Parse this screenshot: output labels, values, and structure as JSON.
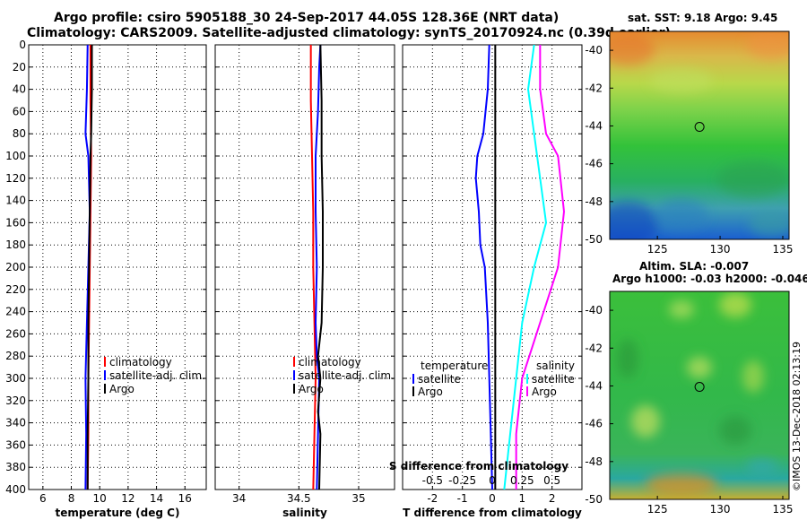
{
  "header": {
    "title_line1": "Argo profile: csiro 5905188_30 24-Sep-2017 44.05S 128.36E (NRT data)",
    "title_line2": "Climatology: CARS2009. Satellite-adjusted climatology: synTS_20170924.nc (0.39d earlier)"
  },
  "watermark": "©IMOS 13-Dec-2018 02:13:19",
  "colors": {
    "climatology": "#ff0000",
    "satellite_clim": "#0000ff",
    "argo": "#000000",
    "temp_satellite": "#0000ff",
    "temp_argo": "#000000",
    "sal_satellite": "#00ffff",
    "sal_argo": "#ff00ff"
  },
  "sst_map": {
    "title": "sat. SST: 9.18 Argo: 9.45",
    "xticks": [
      "125",
      "130",
      "135"
    ],
    "yticks": [
      "-40",
      "-42",
      "-44",
      "-46",
      "-48",
      "-50"
    ],
    "float_marker": {
      "lon": 128.36,
      "lat": -44.05
    }
  },
  "sla_map": {
    "title_line1": "Altim. SLA: -0.007",
    "title_line2": "Argo h1000: -0.03 h2000: -0.046",
    "xticks": [
      "125",
      "130",
      "135"
    ],
    "yticks": [
      "-40",
      "-42",
      "-44",
      "-46",
      "-48",
      "-50"
    ],
    "float_marker": {
      "lon": 128.36,
      "lat": -44.05
    }
  },
  "chart_data": [
    {
      "type": "line",
      "id": "temperature-profile",
      "xlabel": "temperature (deg C)",
      "ylabel": "depth (m)",
      "xlim": [
        5,
        17.5
      ],
      "ylim": [
        400,
        0
      ],
      "xticks": [
        6,
        8,
        10,
        12,
        14,
        16
      ],
      "yticks": [
        0,
        20,
        40,
        60,
        80,
        100,
        120,
        140,
        160,
        180,
        200,
        220,
        240,
        260,
        280,
        300,
        320,
        340,
        360,
        380,
        400
      ],
      "grid": true,
      "legend": [
        "climatology",
        "satellite-adj. clim.",
        "Argo"
      ],
      "series": [
        {
          "name": "climatology",
          "depth": [
            0,
            50,
            100,
            150,
            200,
            250,
            300,
            350,
            400
          ],
          "values": [
            9.35,
            9.35,
            9.4,
            9.35,
            9.3,
            9.25,
            9.2,
            9.2,
            9.15
          ]
        },
        {
          "name": "satellite-adj. clim.",
          "depth": [
            0,
            40,
            80,
            100,
            150,
            200,
            250,
            300,
            350,
            400
          ],
          "values": [
            9.15,
            9.1,
            9.0,
            9.2,
            9.3,
            9.2,
            9.1,
            9.0,
            9.05,
            9.0
          ]
        },
        {
          "name": "Argo",
          "depth": [
            0,
            40,
            80,
            100,
            150,
            200,
            250,
            300,
            350,
            400
          ],
          "values": [
            9.45,
            9.45,
            9.4,
            9.35,
            9.3,
            9.25,
            9.2,
            9.2,
            9.15,
            9.15
          ]
        }
      ]
    },
    {
      "type": "line",
      "id": "salinity-profile",
      "xlabel": "salinity",
      "ylabel": "depth (m)",
      "xlim": [
        33.8,
        35.3
      ],
      "ylim": [
        400,
        0
      ],
      "xticks": [
        34,
        34.5,
        35
      ],
      "yticks": [
        0,
        20,
        40,
        60,
        80,
        100,
        120,
        140,
        160,
        180,
        200,
        220,
        240,
        260,
        280,
        300,
        320,
        340,
        360,
        380,
        400
      ],
      "grid": true,
      "legend": [
        "climatology",
        "satellite-adj. clim.",
        "Argo"
      ],
      "series": [
        {
          "name": "climatology",
          "depth": [
            0,
            50,
            100,
            150,
            200,
            250,
            300,
            350,
            400
          ],
          "values": [
            34.6,
            34.6,
            34.61,
            34.62,
            34.62,
            34.63,
            34.64,
            34.63,
            34.62
          ]
        },
        {
          "name": "satellite-adj. clim.",
          "depth": [
            0,
            20,
            60,
            100,
            150,
            200,
            250,
            280,
            300,
            350,
            400
          ],
          "values": [
            34.68,
            34.67,
            34.66,
            34.64,
            34.64,
            34.65,
            34.64,
            34.65,
            34.67,
            34.66,
            34.65
          ]
        },
        {
          "name": "Argo",
          "depth": [
            0,
            50,
            100,
            150,
            200,
            250,
            280,
            300,
            330,
            350,
            400
          ],
          "values": [
            34.68,
            34.69,
            34.69,
            34.7,
            34.7,
            34.69,
            34.66,
            34.68,
            34.66,
            34.68,
            34.67
          ]
        }
      ]
    },
    {
      "type": "line",
      "id": "difference-profile",
      "xlabel": "T difference from climatology",
      "xlabel2": "S difference from climatology",
      "xlim": [
        -3,
        3
      ],
      "ylim": [
        400,
        0
      ],
      "xticks": [
        -2,
        -1,
        0,
        1,
        2
      ],
      "xticks2": [
        "-0.5",
        "-0.25",
        "0",
        "0.25",
        "0.5"
      ],
      "yticks": [
        0,
        20,
        40,
        60,
        80,
        100,
        120,
        140,
        160,
        180,
        200,
        220,
        240,
        260,
        280,
        300,
        320,
        340,
        360,
        380,
        400
      ],
      "grid": true,
      "legend_temperature": {
        "title": "temperature",
        "items": [
          "satellite",
          "Argo"
        ]
      },
      "legend_salinity": {
        "title": "salinity",
        "items": [
          "satellite",
          "Argo"
        ]
      },
      "series": [
        {
          "name": "temperature satellite",
          "depth": [
            0,
            40,
            80,
            100,
            120,
            150,
            180,
            200,
            250,
            300,
            350,
            400
          ],
          "values": [
            -0.1,
            -0.15,
            -0.3,
            -0.5,
            -0.55,
            -0.45,
            -0.4,
            -0.25,
            -0.15,
            -0.1,
            -0.05,
            0.0
          ]
        },
        {
          "name": "temperature Argo",
          "depth": [
            0,
            100,
            200,
            300,
            400
          ],
          "values": [
            0.1,
            0.1,
            0.1,
            0.1,
            0.1
          ]
        },
        {
          "name": "salinity satellite",
          "depth": [
            0,
            40,
            80,
            120,
            160,
            200,
            250,
            300,
            350,
            400
          ],
          "values": [
            0.35,
            0.3,
            0.35,
            0.4,
            0.45,
            0.35,
            0.25,
            0.2,
            0.15,
            0.1
          ]
        },
        {
          "name": "salinity Argo",
          "depth": [
            0,
            40,
            80,
            100,
            150,
            200,
            250,
            300,
            350,
            400
          ],
          "values": [
            0.4,
            0.4,
            0.45,
            0.55,
            0.6,
            0.55,
            0.4,
            0.25,
            0.2,
            0.2
          ]
        }
      ]
    }
  ]
}
